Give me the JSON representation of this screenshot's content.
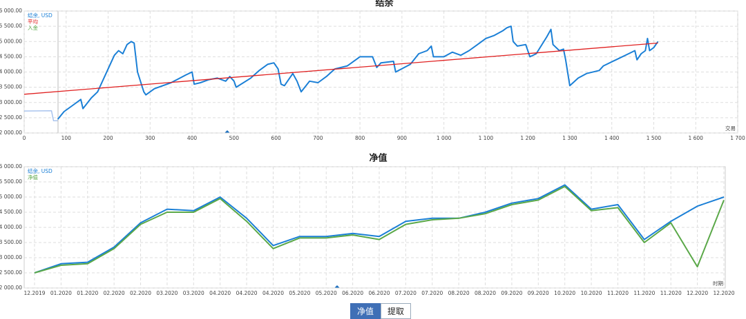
{
  "chart_data": [
    {
      "type": "line",
      "title": "结余",
      "x_label": "交易",
      "xlim": [
        0,
        1700
      ],
      "xticks": [
        0,
        100,
        200,
        300,
        400,
        500,
        600,
        700,
        800,
        900,
        {
          "value": 1000,
          "label": "1 000"
        },
        {
          "value": 1100,
          "label": "1 100"
        },
        {
          "value": 1200,
          "label": "1 200"
        },
        {
          "value": 1300,
          "label": "1 300"
        },
        {
          "value": 1400,
          "label": "1 400"
        },
        {
          "value": 1500,
          "label": "1 500"
        },
        {
          "value": 1600,
          "label": "1 600"
        },
        {
          "value": 1700,
          "label": "1 700"
        }
      ],
      "ylim": [
        2000,
        6000
      ],
      "yticks": [
        {
          "value": 2000,
          "label": "2 000.00"
        },
        {
          "value": 2500,
          "label": "2 500.00"
        },
        {
          "value": 3000,
          "label": "3 000.00"
        },
        {
          "value": 3500,
          "label": "3 500.00"
        },
        {
          "value": 4000,
          "label": "4 000.00"
        },
        {
          "value": 4500,
          "label": "4 500.00"
        },
        {
          "value": 5000,
          "label": "5 000.00"
        },
        {
          "value": 5500,
          "label": "5 500.00"
        },
        {
          "value": 6000,
          "label": "6 000.00"
        }
      ],
      "grid": true,
      "series": [
        {
          "color": "#a9c4ee",
          "x": [
            0,
            65,
            70,
            80
          ],
          "values": [
            2720,
            2730,
            2400,
            2400
          ]
        },
        {
          "name": "结余, USD",
          "color": "#1a7fd6",
          "x": [
            80,
            95,
            120,
            135,
            140,
            160,
            175,
            200,
            215,
            225,
            235,
            245,
            255,
            262,
            270,
            285,
            290,
            310,
            350,
            385,
            400,
            405,
            420,
            440,
            460,
            480,
            490,
            500,
            505,
            540,
            560,
            580,
            595,
            605,
            612,
            620,
            640,
            650,
            660,
            680,
            700,
            720,
            740,
            770,
            800,
            830,
            840,
            850,
            880,
            885,
            920,
            940,
            960,
            970,
            975,
            1000,
            1020,
            1040,
            1060,
            1080,
            1100,
            1120,
            1140,
            1150,
            1160,
            1165,
            1175,
            1195,
            1205,
            1220,
            1245,
            1255,
            1260,
            1275,
            1285,
            1290,
            1300,
            1320,
            1340,
            1370,
            1380,
            1410,
            1440,
            1455,
            1460,
            1470,
            1480,
            1485,
            1490,
            1500,
            1510
          ],
          "values": [
            2450,
            2700,
            2950,
            3100,
            2800,
            3150,
            3350,
            4100,
            4550,
            4700,
            4600,
            4900,
            5000,
            4950,
            4000,
            3350,
            3250,
            3450,
            3650,
            3900,
            4000,
            3600,
            3650,
            3750,
            3800,
            3700,
            3850,
            3700,
            3500,
            3800,
            4050,
            4250,
            4300,
            4100,
            3600,
            3550,
            3950,
            3700,
            3350,
            3700,
            3650,
            3850,
            4100,
            4200,
            4500,
            4500,
            4150,
            4300,
            4350,
            4000,
            4250,
            4600,
            4700,
            4850,
            4500,
            4500,
            4650,
            4550,
            4700,
            4900,
            5100,
            5200,
            5350,
            5450,
            5500,
            5000,
            4850,
            4900,
            4500,
            4600,
            5150,
            5400,
            4900,
            4700,
            4750,
            4400,
            3550,
            3800,
            3950,
            4050,
            4200,
            4400,
            4600,
            4700,
            4400,
            4600,
            4700,
            5100,
            4700,
            4800,
            5000
          ]
        },
        {
          "name": "平均",
          "color": "#e02020",
          "x": [
            0,
            1510
          ],
          "values": [
            3270,
            4950
          ]
        },
        {
          "name": "入金",
          "color": "#5aa848",
          "x": [],
          "values": []
        }
      ]
    },
    {
      "type": "line",
      "title": "净值",
      "x_label": "时期",
      "categories": [
        "12.2019",
        "01.2020",
        "01.2020",
        "02.2020",
        "02.2020",
        "03.2020",
        "03.2020",
        "04.2020",
        "04.2020",
        "04.2020",
        "05.2020",
        "05.2020",
        "06.2020",
        "06.2020",
        "07.2020",
        "07.2020",
        "08.2020",
        "08.2020",
        "09.2020",
        "09.2020",
        "10.2020",
        "10.2020",
        "11.2020",
        "11.2020",
        "11.2020",
        "12.2020",
        "12.2020"
      ],
      "ylim": [
        2000,
        6000
      ],
      "yticks": [
        {
          "value": 2000,
          "label": "2 000.00"
        },
        {
          "value": 2500,
          "label": "2 500.00"
        },
        {
          "value": 3000,
          "label": "3 000.00"
        },
        {
          "value": 3500,
          "label": "3 500.00"
        },
        {
          "value": 4000,
          "label": "4 000.00"
        },
        {
          "value": 4500,
          "label": "4 500.00"
        },
        {
          "value": 5000,
          "label": "5 000.00"
        },
        {
          "value": 5500,
          "label": "5 500.00"
        },
        {
          "value": 6000,
          "label": "6 000.00"
        }
      ],
      "grid": true,
      "series": [
        {
          "name": "结余, USD",
          "color": "#1a7fd6",
          "values": [
            2500,
            2800,
            2850,
            3350,
            4150,
            4600,
            4550,
            5000,
            4300,
            3400,
            3700,
            3700,
            3800,
            3700,
            4200,
            4300,
            4300,
            4500,
            4800,
            4950,
            5400,
            4600,
            4750,
            3600,
            4200,
            4700,
            5000
          ]
        },
        {
          "name": "净值",
          "color": "#5aa848",
          "values": [
            2500,
            2750,
            2800,
            3300,
            4100,
            4500,
            4500,
            4950,
            4200,
            3300,
            3650,
            3650,
            3750,
            3600,
            4100,
            4250,
            4300,
            4450,
            4750,
            4900,
            5350,
            4550,
            4650,
            3500,
            4150,
            2700,
            4900
          ]
        }
      ]
    }
  ],
  "controls": {
    "buttons": [
      "净值",
      "提取"
    ]
  }
}
